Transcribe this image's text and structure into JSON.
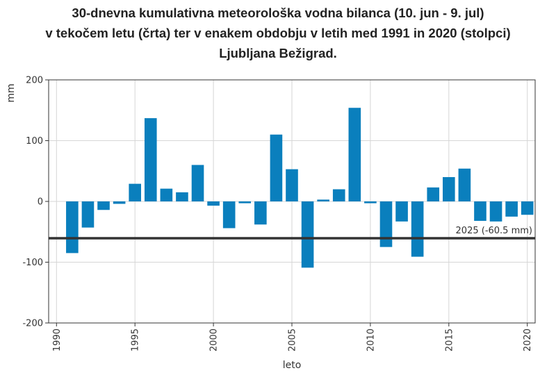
{
  "title_lines": [
    "30-dnevna kumulativna meteorološka vodna bilanca (10. jun - 9. jul)",
    "v tekočem letu (črta) ter v enakem obdobju v letih med 1991 in 2020 (stolpci)",
    "Ljubljana Bežigrad."
  ],
  "chart_data": {
    "type": "bar",
    "title": "30-dnevna kumulativna meteorološka vodna bilanca (10. jun - 9. jul) v tekočem letu (črta) ter v enakem obdobju v letih med 1991 in 2020 (stolpci) Ljubljana Bežigrad.",
    "xlabel": "leto",
    "ylabel": "mm",
    "xlim": [
      1989.5,
      2020.5
    ],
    "ylim": [
      -200,
      200
    ],
    "x_ticks": [
      1990,
      1995,
      2000,
      2005,
      2010,
      2015,
      2020
    ],
    "x_tick_labels": [
      "1990",
      "1995",
      "2000",
      "2005",
      "2010",
      "2015",
      "2020"
    ],
    "y_ticks": [
      200,
      100,
      0,
      -100,
      -200
    ],
    "y_tick_labels": [
      "200",
      "100",
      "0",
      "-100",
      "-200"
    ],
    "grid": true,
    "bar_color": "#0a7fbd",
    "x": [
      1991,
      1992,
      1993,
      1994,
      1995,
      1996,
      1997,
      1998,
      1999,
      2000,
      2001,
      2002,
      2003,
      2004,
      2005,
      2006,
      2007,
      2008,
      2009,
      2010,
      2011,
      2012,
      2013,
      2014,
      2015,
      2016,
      2017,
      2018,
      2019,
      2020
    ],
    "values": [
      -85,
      -43,
      -14,
      -4,
      29,
      137,
      21,
      15,
      60,
      -7,
      -44,
      -3,
      -38,
      110,
      53,
      -109,
      3,
      20,
      154,
      -3,
      -75,
      -33,
      -91,
      23,
      40,
      54,
      -32,
      -33,
      -25,
      -22
    ],
    "reference_line": {
      "value": -60.5,
      "label": "2025 (-60.5 mm)",
      "color": "#333333"
    }
  }
}
